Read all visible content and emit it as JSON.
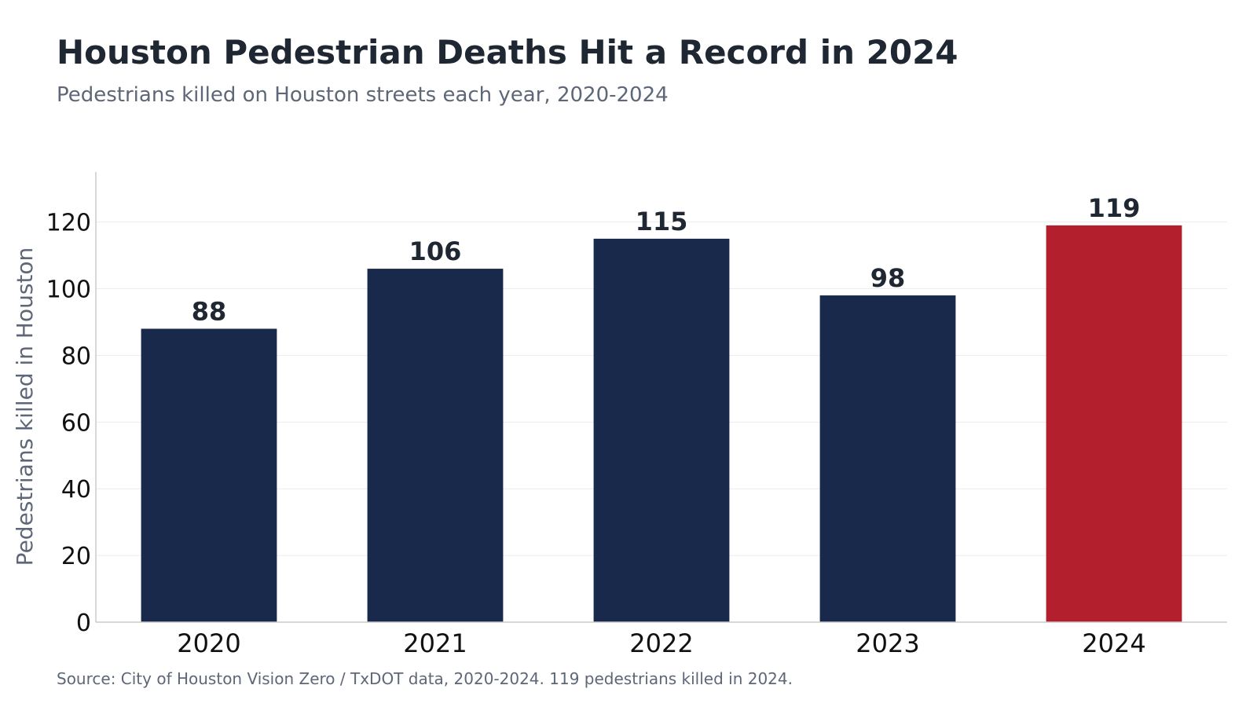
{
  "header": {
    "title": "Houston Pedestrian Deaths Hit a Record in 2024",
    "subtitle": "Pedestrians killed on Houston streets each year, 2020-2024"
  },
  "footer": {
    "source": "Source: City of Houston Vision Zero / TxDOT data, 2020-2024. 119 pedestrians killed in 2024."
  },
  "colors": {
    "bar_default": "#18294b",
    "bar_highlight": "#b41f2e",
    "value_label": "#1f2733",
    "axis_label": "#5e6777",
    "tick_label": "#111111",
    "gridline": "#ececec",
    "axis_line": "#cccccc"
  },
  "chart_data": {
    "type": "bar",
    "categories": [
      "2020",
      "2021",
      "2022",
      "2023",
      "2024"
    ],
    "values": [
      88,
      106,
      115,
      98,
      119
    ],
    "value_labels": [
      "88",
      "106",
      "115",
      "98",
      "119"
    ],
    "highlight_index": 4,
    "ylabel": "Pedestrians killed in Houston",
    "xlabel": "",
    "ylim": [
      0,
      135
    ],
    "yticks": [
      0,
      20,
      40,
      60,
      80,
      100,
      120
    ],
    "grid": true
  }
}
